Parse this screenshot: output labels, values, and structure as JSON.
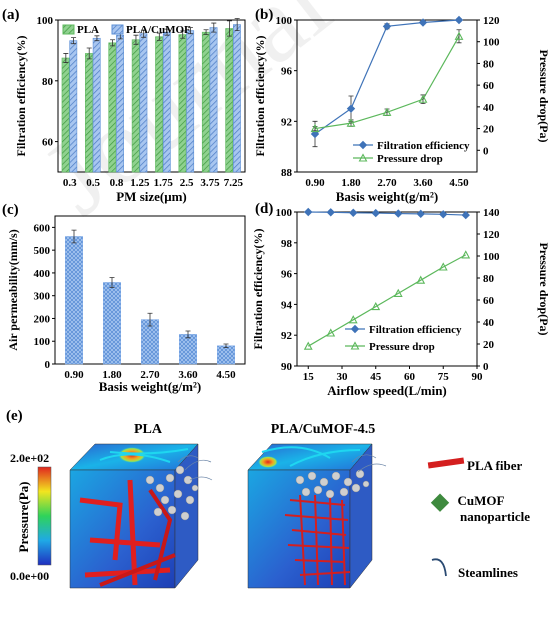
{
  "watermark": "Journal Pre-proof",
  "chart_data": [
    {
      "panel": "(a)",
      "type": "bar",
      "xlabel": "PM size(μm)",
      "ylabel": "Filtration efficiency(%)",
      "ylim": [
        50,
        100
      ],
      "yticks": [
        60,
        80,
        100
      ],
      "categories": [
        "0.3",
        "0.5",
        "0.8",
        "1.25",
        "1.75",
        "2.5",
        "3.75",
        "7.25"
      ],
      "series": [
        {
          "name": "PLA",
          "color": "#5cb85c",
          "values": [
            87.5,
            89.0,
            92.5,
            93.5,
            94.5,
            95.2,
            96.0,
            97.2
          ],
          "errors": [
            1.5,
            1.8,
            1.0,
            1.5,
            1.2,
            1.2,
            0.8,
            2.5
          ]
        },
        {
          "name": "PLA/CuMOF",
          "color": "#5b8fd6",
          "values": [
            93.2,
            94.0,
            95.0,
            95.5,
            96.0,
            96.5,
            97.5,
            98.5
          ],
          "errors": [
            1.0,
            0.8,
            1.2,
            1.2,
            1.0,
            1.0,
            1.5,
            2.0
          ]
        }
      ],
      "legend_position": "top"
    },
    {
      "panel": "(b)",
      "type": "line",
      "xlabel": "Basis weight(g/m²)",
      "ylabel": "Filtration efficiency(%)",
      "y2label": "Pressure drop(Pa)",
      "categories": [
        "0.90",
        "1.80",
        "2.70",
        "3.60",
        "4.50"
      ],
      "ylim": [
        88,
        100
      ],
      "yticks": [
        88,
        92,
        96,
        100
      ],
      "y2lim": [
        -20,
        120
      ],
      "y2ticks": [
        0,
        20,
        40,
        60,
        80,
        100,
        120
      ],
      "series": [
        {
          "name": "Filtration efficiency",
          "axis": "left",
          "color": "#3f73b8",
          "marker": "diamond",
          "values": [
            91.0,
            93.0,
            99.5,
            99.8,
            100.0
          ],
          "errors": [
            1.0,
            1.0,
            0.2,
            0.1,
            0.1
          ]
        },
        {
          "name": "Pressure drop",
          "axis": "right",
          "color": "#5cb85c",
          "marker": "triangle",
          "values": [
            20,
            25,
            35,
            47,
            105
          ],
          "errors": [
            2,
            3,
            3,
            4,
            6
          ]
        }
      ],
      "legend_position": "bottom-right"
    },
    {
      "panel": "(c)",
      "type": "bar",
      "xlabel": "Basis weight(g/m²)",
      "ylabel": "Air permeability(mm/s)",
      "ylim": [
        0,
        650
      ],
      "yticks": [
        0,
        100,
        200,
        300,
        400,
        500,
        600
      ],
      "categories": [
        "0.90",
        "1.80",
        "2.70",
        "3.60",
        "4.50"
      ],
      "series": [
        {
          "name": "Air permeability",
          "color": "#6e9fe0",
          "values": [
            560,
            358,
            195,
            130,
            80
          ],
          "errors": [
            28,
            22,
            28,
            15,
            8
          ]
        }
      ]
    },
    {
      "panel": "(d)",
      "type": "line",
      "xlabel": "Airflow speed(L/min)",
      "ylabel": "Filtration efficiency(%)",
      "y2label": "Pressure drop(Pa)",
      "xlim": [
        10,
        90
      ],
      "xticks": [
        15,
        30,
        45,
        60,
        75,
        90
      ],
      "ylim": [
        90,
        100
      ],
      "yticks": [
        90,
        92,
        94,
        96,
        98,
        100
      ],
      "y2lim": [
        0,
        140
      ],
      "y2ticks": [
        0,
        20,
        40,
        60,
        80,
        100,
        120,
        140
      ],
      "series": [
        {
          "name": "Filtration efficiency",
          "axis": "left",
          "color": "#3f73b8",
          "marker": "diamond",
          "x": [
            15,
            25,
            35,
            45,
            55,
            65,
            75,
            85
          ],
          "values": [
            100.0,
            99.98,
            99.95,
            99.93,
            99.9,
            99.88,
            99.85,
            99.8
          ]
        },
        {
          "name": "Pressure drop",
          "axis": "right",
          "color": "#5cb85c",
          "marker": "triangle",
          "x": [
            15,
            25,
            35,
            45,
            55,
            65,
            75,
            85
          ],
          "values": [
            18,
            30,
            42,
            54,
            66,
            78,
            90,
            101
          ]
        }
      ],
      "legend_position": "bottom-right"
    }
  ],
  "panel_e": {
    "label": "(e)",
    "title_left": "PLA",
    "title_right": "PLA/CuMOF-4.5",
    "colorbar_title": "Pressure(Pa)",
    "colorbar_max": "2.0e+02",
    "colorbar_min": "0.0e+00",
    "legend_fiber": "PLA fiber",
    "legend_particle_line1": "CuMOF",
    "legend_particle_line2": "nanoparticle",
    "legend_streamlines": "Steamlines"
  }
}
